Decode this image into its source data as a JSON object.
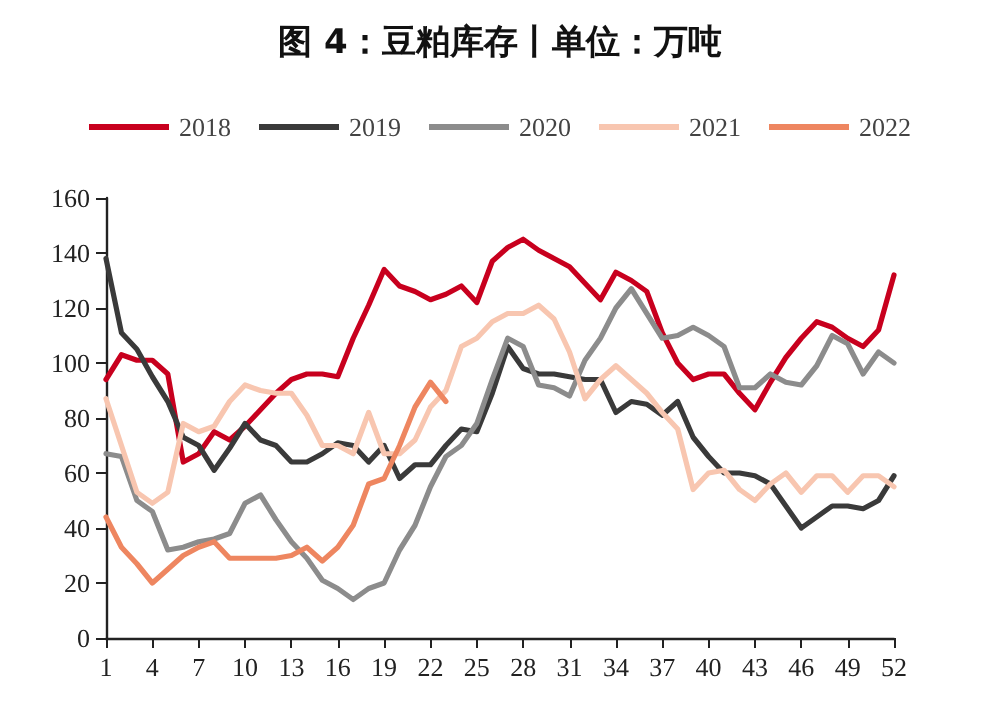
{
  "chart_data": {
    "type": "line",
    "title": "图 4：豆粕库存丨单位：万吨",
    "categories": [
      "1",
      null,
      null,
      "4",
      null,
      null,
      "7",
      null,
      null,
      "10",
      null,
      null,
      "13",
      null,
      null,
      "16",
      null,
      null,
      "19",
      null,
      null,
      "22",
      null,
      null,
      "25",
      null,
      null,
      "28",
      null,
      null,
      "31",
      null,
      null,
      "34",
      null,
      null,
      "37",
      null,
      null,
      "40",
      null,
      null,
      "43",
      null,
      null,
      "46",
      null,
      null,
      "49",
      null,
      null,
      "52"
    ],
    "series": [
      {
        "name": "2018",
        "color": "#c8001e",
        "values": [
          94,
          103,
          101,
          101,
          96,
          64,
          67,
          75,
          72,
          77,
          83,
          89,
          94,
          96,
          96,
          95,
          109,
          121,
          134,
          128,
          126,
          123,
          125,
          128,
          122,
          137,
          142,
          145,
          141,
          138,
          135,
          129,
          123,
          133,
          130,
          126,
          111,
          100,
          94,
          96,
          96,
          89,
          83,
          93,
          102,
          109,
          115,
          113,
          109,
          106,
          112,
          132
        ]
      },
      {
        "name": "2019",
        "color": "#3a3a3a",
        "values": [
          138,
          111,
          105,
          95,
          86,
          73,
          70,
          61,
          69,
          78,
          72,
          70,
          64,
          64,
          67,
          71,
          70,
          64,
          70,
          58,
          63,
          63,
          70,
          76,
          75,
          89,
          106,
          98,
          96,
          96,
          95,
          94,
          94,
          82,
          86,
          85,
          81,
          86,
          73,
          66,
          60,
          60,
          59,
          56,
          48,
          40,
          44,
          48,
          48,
          47,
          50,
          59
        ]
      },
      {
        "name": "2020",
        "color": "#8c8c8c",
        "values": [
          67,
          66,
          50,
          46,
          32,
          33,
          35,
          36,
          38,
          49,
          52,
          43,
          35,
          29,
          21,
          18,
          14,
          18,
          20,
          32,
          41,
          55,
          66,
          70,
          78,
          94,
          109,
          106,
          92,
          91,
          88,
          101,
          109,
          120,
          127,
          118,
          109,
          110,
          113,
          110,
          106,
          91,
          91,
          96,
          93,
          92,
          99,
          110,
          107,
          96,
          104,
          100
        ]
      },
      {
        "name": "2021",
        "color": "#f8c6b0",
        "values": [
          87,
          70,
          53,
          49,
          53,
          78,
          75,
          77,
          86,
          92,
          90,
          89,
          89,
          81,
          70,
          70,
          67,
          82,
          67,
          67,
          72,
          84,
          90,
          106,
          109,
          115,
          118,
          118,
          121,
          116,
          104,
          87,
          94,
          99,
          94,
          89,
          82,
          76,
          54,
          60,
          61,
          54,
          50,
          56,
          60,
          53,
          59,
          59,
          53,
          59,
          59,
          55
        ]
      },
      {
        "name": "2022",
        "color": "#ee8660",
        "values": [
          44,
          33,
          27,
          20,
          25,
          30,
          33,
          35,
          29,
          29,
          29,
          29,
          30,
          33,
          28,
          33,
          41,
          56,
          58,
          70,
          84,
          93,
          86,
          null,
          null,
          null,
          null,
          null,
          null,
          null,
          null,
          null,
          null,
          null,
          null,
          null,
          null,
          null,
          null,
          null,
          null,
          null,
          null,
          null,
          null,
          null,
          null,
          null,
          null,
          null,
          null,
          null
        ]
      }
    ],
    "ylim": [
      0,
      160
    ],
    "yticks": [
      0,
      20,
      40,
      60,
      80,
      100,
      120,
      140,
      160
    ],
    "grid": false,
    "legend": "top",
    "marker": "none",
    "line_style": "solid"
  }
}
